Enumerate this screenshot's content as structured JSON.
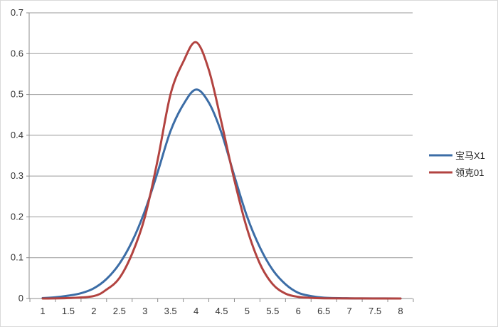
{
  "chart_data": {
    "type": "line",
    "x": [
      1,
      1.5,
      2,
      2.5,
      3,
      3.5,
      4,
      4.5,
      5,
      5.5,
      6,
      6.5,
      7,
      7.5,
      8
    ],
    "series": [
      {
        "name": "宝马X1",
        "color": "#3c6da6",
        "points": [
          [
            1,
            0.001
          ],
          [
            1.25,
            0.003
          ],
          [
            1.5,
            0.007
          ],
          [
            1.75,
            0.013
          ],
          [
            2,
            0.025
          ],
          [
            2.25,
            0.048
          ],
          [
            2.5,
            0.085
          ],
          [
            2.75,
            0.14
          ],
          [
            3,
            0.215
          ],
          [
            3.25,
            0.31
          ],
          [
            3.5,
            0.41
          ],
          [
            3.75,
            0.475
          ],
          [
            4,
            0.512
          ],
          [
            4.25,
            0.48
          ],
          [
            4.5,
            0.405
          ],
          [
            4.75,
            0.3
          ],
          [
            5,
            0.2
          ],
          [
            5.25,
            0.125
          ],
          [
            5.5,
            0.07
          ],
          [
            5.75,
            0.035
          ],
          [
            6,
            0.014
          ],
          [
            6.25,
            0.006
          ],
          [
            6.5,
            0.002
          ],
          [
            7,
            0.0005
          ],
          [
            7.5,
            0.0002
          ],
          [
            8,
            0.0001
          ]
        ]
      },
      {
        "name": "领克01",
        "color": "#b24340",
        "points": [
          [
            1,
            0.0
          ],
          [
            1.5,
            0.001
          ],
          [
            2,
            0.006
          ],
          [
            2.25,
            0.022
          ],
          [
            2.5,
            0.05
          ],
          [
            2.75,
            0.11
          ],
          [
            3,
            0.2
          ],
          [
            3.25,
            0.34
          ],
          [
            3.5,
            0.5
          ],
          [
            3.75,
            0.58
          ],
          [
            4,
            0.628
          ],
          [
            4.25,
            0.56
          ],
          [
            4.5,
            0.43
          ],
          [
            4.75,
            0.29
          ],
          [
            5,
            0.17
          ],
          [
            5.25,
            0.085
          ],
          [
            5.5,
            0.035
          ],
          [
            5.75,
            0.012
          ],
          [
            6,
            0.004
          ],
          [
            6.25,
            0.0015
          ],
          [
            6.5,
            0.0005
          ],
          [
            7,
            0.0002
          ],
          [
            8,
            0.0
          ]
        ]
      }
    ],
    "xticks": [
      "1",
      "1.5",
      "2",
      "2.5",
      "3",
      "3.5",
      "4",
      "4.5",
      "5",
      "5.5",
      "6",
      "6.5",
      "7",
      "7.5",
      "8"
    ],
    "yticks": [
      "0",
      "0.1",
      "0.2",
      "0.3",
      "0.4",
      "0.5",
      "0.6",
      "0.7"
    ],
    "xlim": [
      1,
      8
    ],
    "ylim": [
      0,
      0.7
    ],
    "grid": "horizontal",
    "legend_position": "right",
    "title": "",
    "xlabel": "",
    "ylabel": ""
  }
}
